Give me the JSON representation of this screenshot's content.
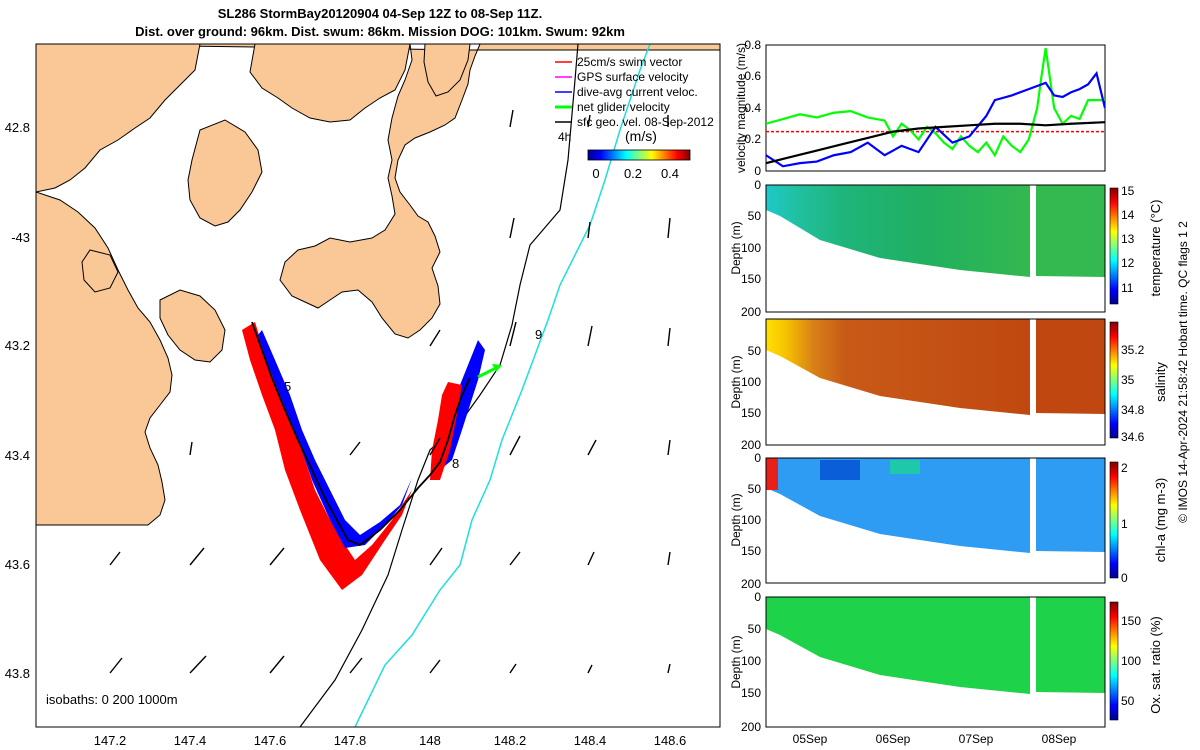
{
  "title_line1": "SL286 StormBay20120904 04-Sep 12Z to 08-Sep 11Z.",
  "title_line2": "Dist. over ground: 96km. Dist. swum: 86km. Mission DOG: 101km. Swum: 92km",
  "legend": [
    {
      "label": "25cm/s swim vector",
      "color": "#ff0000"
    },
    {
      "label": "GPS surface velocity",
      "color": "#ff00ff"
    },
    {
      "label": "dive-avg current veloc.",
      "color": "#0000ff"
    },
    {
      "label": "net glider velocity",
      "color": "#00ff00"
    },
    {
      "label": "sfc geo. vel. 08-Sep-2012",
      "color": "#000000"
    }
  ],
  "colorbar": {
    "label": "(m/s)",
    "ticks": [
      "0",
      "0.2",
      "0.4"
    ],
    "time_label": "4h"
  },
  "isobaths_label": "isobaths: 0   200  1000m",
  "map_lon_ticks": [
    "147.2",
    "147.4",
    "147.6",
    "147.8",
    "148",
    "148.2",
    "148.4",
    "148.6"
  ],
  "map_lat_ticks": [
    "42.8",
    "-43",
    "43.2",
    "43.4",
    "43.6",
    "43.8"
  ],
  "track_labels": [
    "5",
    "8",
    "9"
  ],
  "time_ticks": [
    "05Sep",
    "06Sep",
    "07Sep",
    "08Sep"
  ],
  "depth_ticks": [
    "0",
    "50",
    "100",
    "150",
    "200"
  ],
  "colors": {
    "land": "#f9c896",
    "track_red": "#ff0000",
    "track_blue": "#0000ff",
    "isobath_1000": "#20dede"
  },
  "chart_data": [
    {
      "type": "line",
      "ylabel": "velocity magnitude (m/s)",
      "ylim": [
        0,
        0.8
      ],
      "yticks": [
        "0",
        "0.2",
        "0.4",
        "0.6",
        "0.8"
      ],
      "xlim": [
        4.5,
        8.5
      ],
      "series": [
        {
          "color": "#ff0000",
          "x": [
            4.5,
            8.5
          ],
          "y": [
            0.25,
            0.25
          ]
        },
        {
          "color": "#00ff00",
          "x": [
            4.5,
            4.7,
            4.9,
            5.1,
            5.3,
            5.5,
            5.7,
            5.9,
            6.0,
            6.1,
            6.2,
            6.3,
            6.4,
            6.5,
            6.6,
            6.7,
            6.8,
            6.9,
            7.0,
            7.1,
            7.2,
            7.3,
            7.4,
            7.5,
            7.6,
            7.7,
            7.75,
            7.8,
            7.9,
            8.0,
            8.1,
            8.2,
            8.3,
            8.4,
            8.5
          ],
          "y": [
            0.3,
            0.33,
            0.36,
            0.34,
            0.37,
            0.38,
            0.34,
            0.32,
            0.22,
            0.3,
            0.26,
            0.2,
            0.28,
            0.24,
            0.18,
            0.14,
            0.22,
            0.16,
            0.12,
            0.18,
            0.1,
            0.22,
            0.16,
            0.12,
            0.2,
            0.4,
            0.6,
            0.78,
            0.4,
            0.3,
            0.35,
            0.33,
            0.45,
            0.45,
            0.45
          ]
        },
        {
          "color": "#0000ff",
          "x": [
            4.5,
            4.7,
            4.9,
            5.1,
            5.3,
            5.5,
            5.7,
            5.9,
            6.1,
            6.3,
            6.5,
            6.7,
            6.9,
            7.1,
            7.2,
            7.4,
            7.6,
            7.8,
            7.9,
            8.0,
            8.1,
            8.2,
            8.3,
            8.4,
            8.5
          ],
          "y": [
            0.1,
            0.03,
            0.05,
            0.06,
            0.1,
            0.12,
            0.18,
            0.1,
            0.16,
            0.12,
            0.28,
            0.18,
            0.22,
            0.35,
            0.45,
            0.48,
            0.52,
            0.56,
            0.48,
            0.47,
            0.5,
            0.52,
            0.55,
            0.62,
            0.4
          ]
        },
        {
          "color": "#000000",
          "x": [
            4.5,
            4.8,
            5.1,
            5.4,
            5.7,
            6.0,
            6.3,
            6.6,
            6.9,
            7.2,
            7.5,
            7.8,
            8.1,
            8.5
          ],
          "y": [
            0.05,
            0.09,
            0.13,
            0.17,
            0.21,
            0.25,
            0.27,
            0.28,
            0.29,
            0.3,
            0.3,
            0.29,
            0.3,
            0.31
          ]
        }
      ]
    },
    {
      "type": "heatmap",
      "ylabel": "Depth (m)",
      "ylim": [
        200,
        0
      ],
      "colorbar_label": "temperature (°C)",
      "colorbar_ticks": [
        "11",
        "12",
        "13",
        "14",
        "15"
      ]
    },
    {
      "type": "heatmap",
      "ylabel": "Depth (m)",
      "ylim": [
        200,
        0
      ],
      "colorbar_label": "salinity",
      "colorbar_ticks": [
        "34.6",
        "34.8",
        "35",
        "35.2"
      ]
    },
    {
      "type": "heatmap",
      "ylabel": "Depth (m)",
      "ylim": [
        200,
        0
      ],
      "colorbar_label": "chl-a (mg m-3)",
      "colorbar_ticks": [
        "0",
        "1",
        "2"
      ]
    },
    {
      "type": "heatmap",
      "ylabel": "Depth (m)",
      "ylim": [
        200,
        0
      ],
      "colorbar_label": "Ox. sat. ratio (%)",
      "colorbar_ticks": [
        "50",
        "100",
        "150"
      ]
    }
  ],
  "footer": "© IMOS 14-Apr-2024 21:58:42 Hobart time. QC flags 1  2"
}
